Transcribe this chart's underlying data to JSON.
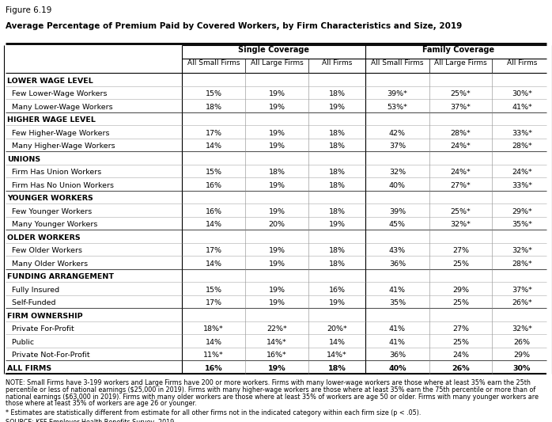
{
  "figure_label": "Figure 6.19",
  "title": "Average Percentage of Premium Paid by Covered Workers, by Firm Characteristics and Size, 2019",
  "sub_labels": [
    "All Small Firms",
    "All Large Firms",
    "All Firms",
    "All Small Firms",
    "All Large Firms",
    "All Firms"
  ],
  "rows": [
    {
      "label": "LOWER WAGE LEVEL",
      "bold": true,
      "indent": false,
      "values": [
        "",
        "",
        "",
        "",
        "",
        ""
      ]
    },
    {
      "label": "  Few Lower-Wage Workers",
      "bold": false,
      "indent": true,
      "values": [
        "15%",
        "19%",
        "18%",
        "39%*",
        "25%*",
        "30%*"
      ]
    },
    {
      "label": "  Many Lower-Wage Workers",
      "bold": false,
      "indent": true,
      "values": [
        "18%",
        "19%",
        "19%",
        "53%*",
        "37%*",
        "41%*"
      ]
    },
    {
      "label": "HIGHER WAGE LEVEL",
      "bold": true,
      "indent": false,
      "values": [
        "",
        "",
        "",
        "",
        "",
        ""
      ]
    },
    {
      "label": "  Few Higher-Wage Workers",
      "bold": false,
      "indent": true,
      "values": [
        "17%",
        "19%",
        "18%",
        "42%",
        "28%*",
        "33%*"
      ]
    },
    {
      "label": "  Many Higher-Wage Workers",
      "bold": false,
      "indent": true,
      "values": [
        "14%",
        "19%",
        "18%",
        "37%",
        "24%*",
        "28%*"
      ]
    },
    {
      "label": "UNIONS",
      "bold": true,
      "indent": false,
      "values": [
        "",
        "",
        "",
        "",
        "",
        ""
      ]
    },
    {
      "label": "  Firm Has Union Workers",
      "bold": false,
      "indent": true,
      "values": [
        "15%",
        "18%",
        "18%",
        "32%",
        "24%*",
        "24%*"
      ]
    },
    {
      "label": "  Firm Has No Union Workers",
      "bold": false,
      "indent": true,
      "values": [
        "16%",
        "19%",
        "18%",
        "40%",
        "27%*",
        "33%*"
      ]
    },
    {
      "label": "YOUNGER WORKERS",
      "bold": true,
      "indent": false,
      "values": [
        "",
        "",
        "",
        "",
        "",
        ""
      ]
    },
    {
      "label": "  Few Younger Workers",
      "bold": false,
      "indent": true,
      "values": [
        "16%",
        "19%",
        "18%",
        "39%",
        "25%*",
        "29%*"
      ]
    },
    {
      "label": "  Many Younger Workers",
      "bold": false,
      "indent": true,
      "values": [
        "14%",
        "20%",
        "19%",
        "45%",
        "32%*",
        "35%*"
      ]
    },
    {
      "label": "OLDER WORKERS",
      "bold": true,
      "indent": false,
      "values": [
        "",
        "",
        "",
        "",
        "",
        ""
      ]
    },
    {
      "label": "  Few Older Workers",
      "bold": false,
      "indent": true,
      "values": [
        "17%",
        "19%",
        "18%",
        "43%",
        "27%",
        "32%*"
      ]
    },
    {
      "label": "  Many Older Workers",
      "bold": false,
      "indent": true,
      "values": [
        "14%",
        "19%",
        "18%",
        "36%",
        "25%",
        "28%*"
      ]
    },
    {
      "label": "FUNDING ARRANGEMENT",
      "bold": true,
      "indent": false,
      "values": [
        "",
        "",
        "",
        "",
        "",
        ""
      ]
    },
    {
      "label": "  Fully Insured",
      "bold": false,
      "indent": true,
      "values": [
        "15%",
        "19%",
        "16%",
        "41%",
        "29%",
        "37%*"
      ]
    },
    {
      "label": "  Self-Funded",
      "bold": false,
      "indent": true,
      "values": [
        "17%",
        "19%",
        "19%",
        "35%",
        "25%",
        "26%*"
      ]
    },
    {
      "label": "FIRM OWNERSHIP",
      "bold": true,
      "indent": false,
      "values": [
        "",
        "",
        "",
        "",
        "",
        ""
      ]
    },
    {
      "label": "  Private For-Profit",
      "bold": false,
      "indent": true,
      "values": [
        "18%*",
        "22%*",
        "20%*",
        "41%",
        "27%",
        "32%*"
      ]
    },
    {
      "label": "  Public",
      "bold": false,
      "indent": true,
      "values": [
        "14%",
        "14%*",
        "14%",
        "41%",
        "25%",
        "26%"
      ]
    },
    {
      "label": "  Private Not-For-Profit",
      "bold": false,
      "indent": true,
      "values": [
        "11%*",
        "16%*",
        "14%*",
        "36%",
        "24%",
        "29%"
      ]
    },
    {
      "label": "ALL FIRMS",
      "bold": true,
      "indent": false,
      "values": [
        "16%",
        "19%",
        "18%",
        "40%",
        "26%",
        "30%"
      ]
    }
  ],
  "note_lines": [
    "NOTE: Small Firms have 3-199 workers and Large Firms have 200 or more workers. Firms with many lower-wage workers are those where at least 35% earn the 25th",
    "percentile or less of national earnings ($25,000 in 2019). Firms with many higher-wage workers are those where at least 35% earn the 75th percentile or more than of",
    "national earnings ($63,000 in 2019). Firms with many older workers are those where at least 35% of workers are age 50 or older. Firms with many younger workers are",
    "those where at least 35% of workers are age 26 or younger."
  ],
  "footnote": "* Estimates are statistically different from estimate for all other firms not in the indicated category within each firm size (p < .05).",
  "source": "SOURCE: KFF Employer Health Benefits Survey, 2019",
  "bg_color": "#ffffff",
  "text_color": "#000000"
}
